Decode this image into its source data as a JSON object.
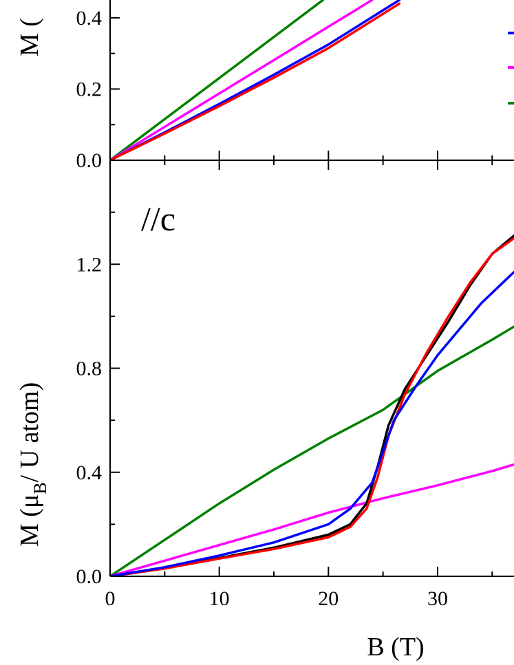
{
  "chart_data": [
    {
      "type": "line",
      "panel": "top",
      "ylabel": "M (",
      "xlim": [
        0,
        37
      ],
      "ylim": [
        0.0,
        0.45
      ],
      "yticks": [
        "0.0",
        "0.2",
        "0.4"
      ],
      "grid": false,
      "legend": {
        "placement": "right",
        "colors": [
          "#0000ff",
          "#ff00ff",
          "#008000"
        ]
      },
      "series": [
        {
          "color": "#008000",
          "x": [
            0,
            19.5
          ],
          "y": [
            0.0,
            0.45
          ]
        },
        {
          "color": "#ff00ff",
          "x": [
            0,
            24
          ],
          "y": [
            0.0,
            0.45
          ]
        },
        {
          "color": "#0000ff",
          "x": [
            0,
            5,
            10,
            15,
            20,
            26.5
          ],
          "y": [
            0.0,
            0.078,
            0.158,
            0.24,
            0.325,
            0.45
          ]
        },
        {
          "color": "#ff0000",
          "x": [
            0,
            5,
            10,
            15,
            20,
            26.5
          ],
          "y": [
            0.0,
            0.075,
            0.152,
            0.232,
            0.315,
            0.44
          ]
        }
      ]
    },
    {
      "type": "line",
      "panel": "bottom",
      "annotation": "//c",
      "xlabel": "B (T)",
      "ylabel": "M (μ_B / U atom)",
      "ylabel_parts": {
        "prefix": "M (μ",
        "subscript": "B",
        "suffix": "/ U atom)"
      },
      "xlim": [
        0,
        37
      ],
      "ylim": [
        0.0,
        1.6
      ],
      "xticks": [
        "0",
        "10",
        "20",
        "30"
      ],
      "yticks": [
        "0.0",
        "0.4",
        "0.8",
        "1.2"
      ],
      "grid": false,
      "series": [
        {
          "color": "#008000",
          "x": [
            0,
            5,
            10,
            15,
            20,
            25,
            30,
            35,
            37
          ],
          "y": [
            0.0,
            0.14,
            0.28,
            0.41,
            0.53,
            0.64,
            0.79,
            0.91,
            0.96
          ]
        },
        {
          "color": "#ff00ff",
          "x": [
            0,
            5,
            10,
            15,
            20,
            25,
            30,
            35,
            37
          ],
          "y": [
            0.0,
            0.06,
            0.12,
            0.18,
            0.245,
            0.3,
            0.35,
            0.405,
            0.43
          ]
        },
        {
          "color": "#000000",
          "x": [
            0,
            5,
            10,
            15,
            20,
            22,
            23.5,
            24.5,
            25.5,
            27,
            29,
            31,
            33,
            35,
            37
          ],
          "y": [
            0.0,
            0.03,
            0.07,
            0.11,
            0.16,
            0.2,
            0.28,
            0.42,
            0.58,
            0.72,
            0.85,
            0.98,
            1.12,
            1.24,
            1.31
          ]
        },
        {
          "color": "#ff0000",
          "x": [
            0,
            5,
            10,
            15,
            20,
            22,
            23.5,
            24.5,
            25.5,
            27,
            29,
            31,
            33,
            35,
            37
          ],
          "y": [
            0.0,
            0.03,
            0.068,
            0.105,
            0.15,
            0.19,
            0.26,
            0.38,
            0.54,
            0.7,
            0.86,
            1.0,
            1.13,
            1.24,
            1.3
          ]
        },
        {
          "color": "#0000ff",
          "x": [
            0,
            5,
            10,
            15,
            20,
            22,
            24,
            25,
            26,
            28,
            30,
            32,
            34,
            36,
            37
          ],
          "y": [
            0.0,
            0.035,
            0.08,
            0.13,
            0.2,
            0.26,
            0.36,
            0.48,
            0.6,
            0.73,
            0.85,
            0.95,
            1.05,
            1.13,
            1.17
          ]
        }
      ]
    }
  ]
}
